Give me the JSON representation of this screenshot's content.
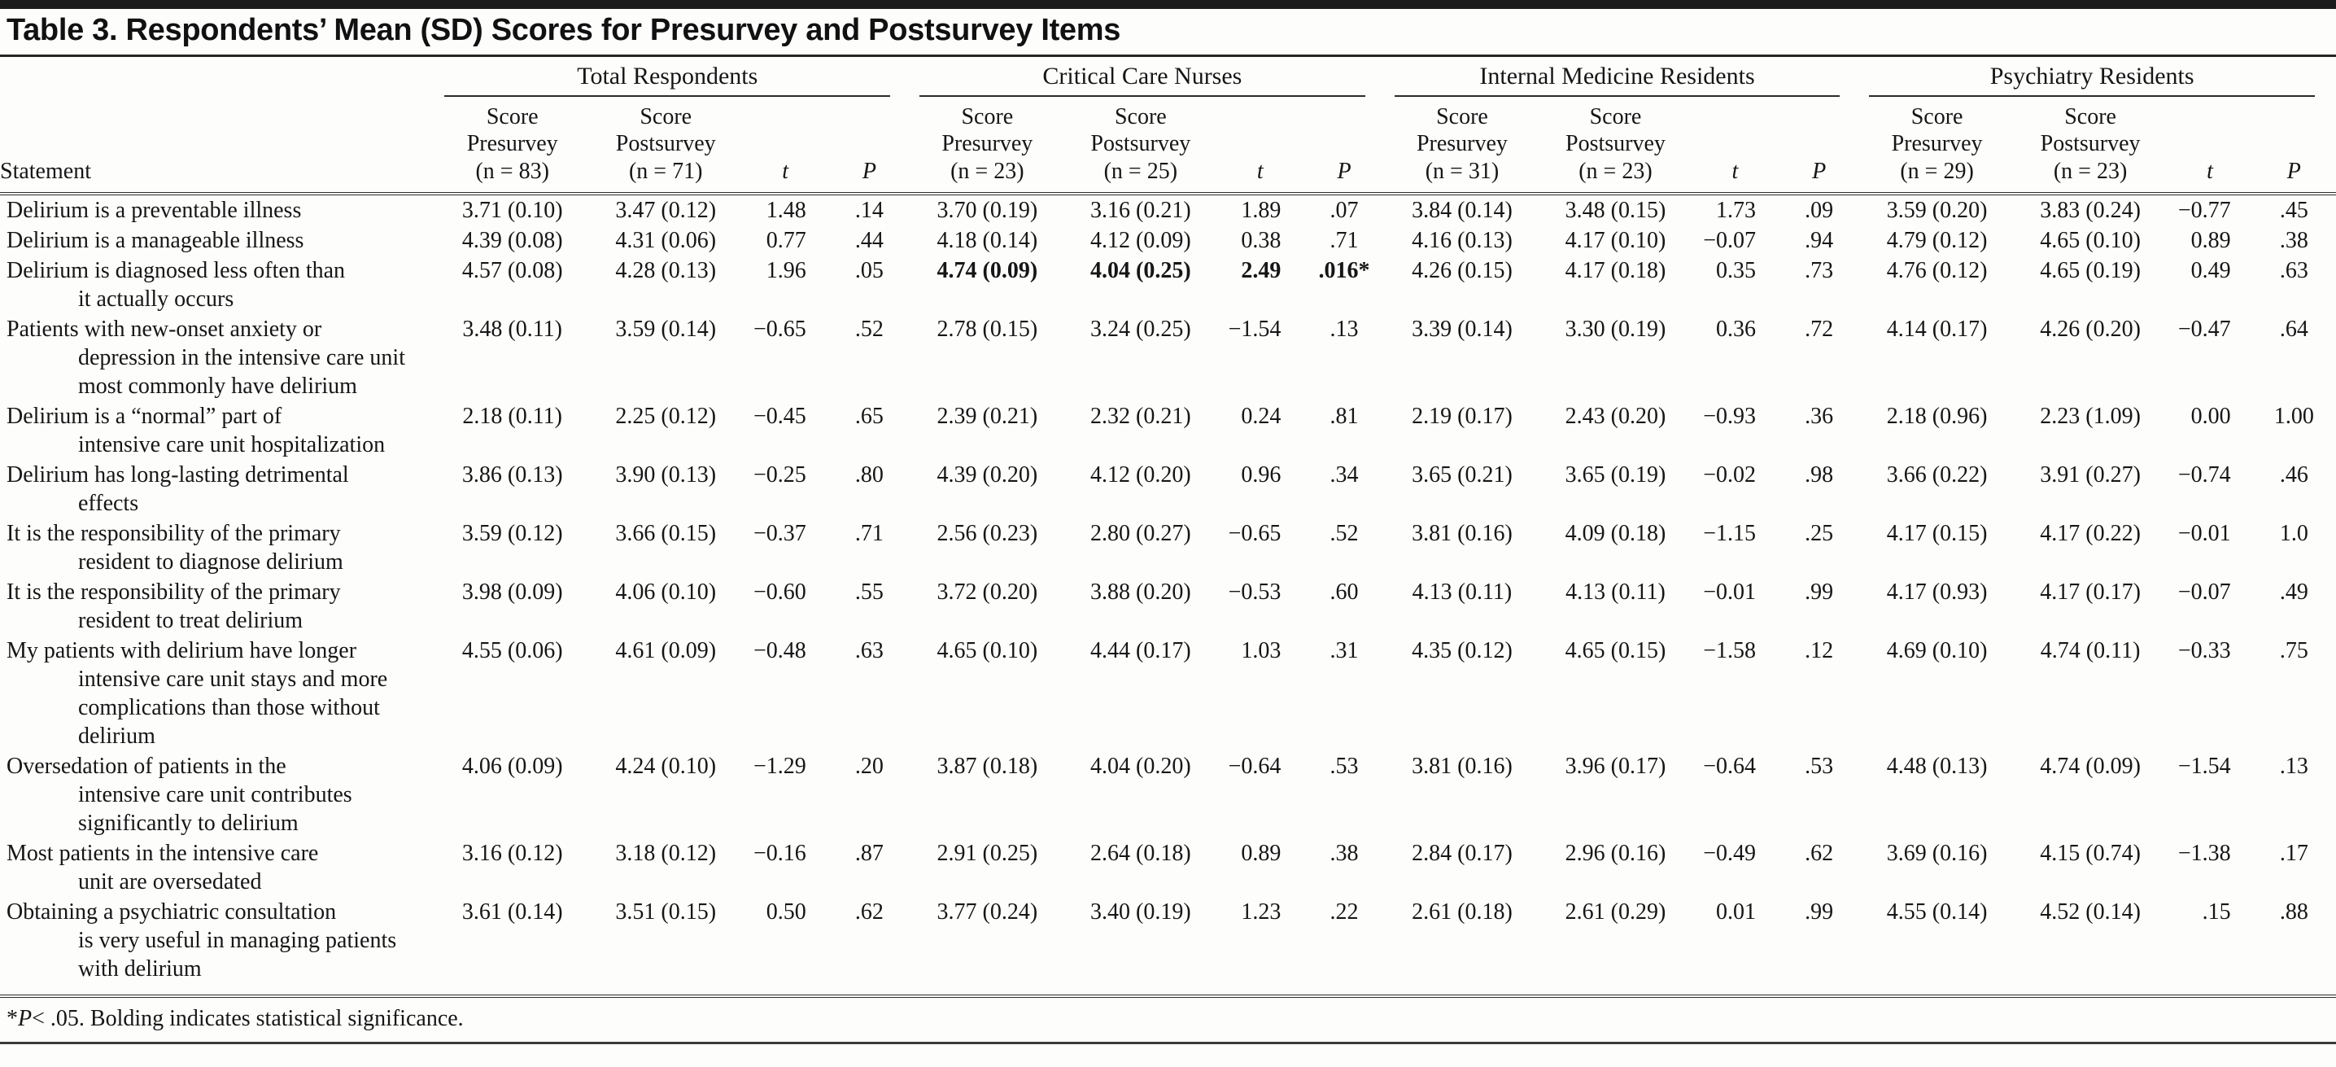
{
  "title": "Table 3. Respondents’ Mean (SD) Scores for Presurvey and Postsurvey Items",
  "table": {
    "statement_header": "Statement",
    "groups": [
      {
        "label": "Total Respondents",
        "pre": "Score\nPresurvey\n(n = 83)",
        "post": "Score\nPostsurvey\n(n = 71)",
        "t": "t",
        "p": "P"
      },
      {
        "label": "Critical Care Nurses",
        "pre": "Score\nPresurvey\n(n = 23)",
        "post": "Score\nPostsurvey\n(n = 25)",
        "t": "t",
        "p": "P"
      },
      {
        "label": "Internal Medicine Residents",
        "pre": "Score\nPresurvey\n(n = 31)",
        "post": "Score\nPostsurvey\n(n = 23)",
        "t": "t",
        "p": "P"
      },
      {
        "label": "Psychiatry Residents",
        "pre": "Score\nPresurvey\n(n = 29)",
        "post": "Score\nPostsurvey\n(n = 23)",
        "t": "t",
        "p": "P"
      }
    ],
    "rows": [
      {
        "statement": "Delirium is a preventable illness",
        "values": [
          "3.71 (0.10)",
          "3.47 (0.12)",
          "1.48",
          ".14",
          "3.70 (0.19)",
          "3.16 (0.21)",
          "1.89",
          ".07",
          "3.84 (0.14)",
          "3.48 (0.15)",
          "1.73",
          ".09",
          "3.59 (0.20)",
          "3.83 (0.24)",
          "−0.77",
          ".45"
        ],
        "bold": []
      },
      {
        "statement": "Delirium is a manageable illness",
        "values": [
          "4.39 (0.08)",
          "4.31 (0.06)",
          "0.77",
          ".44",
          "4.18 (0.14)",
          "4.12 (0.09)",
          "0.38",
          ".71",
          "4.16 (0.13)",
          "4.17 (0.10)",
          "−0.07",
          ".94",
          "4.79 (0.12)",
          "4.65 (0.10)",
          "0.89",
          ".38"
        ],
        "bold": []
      },
      {
        "statement": "Delirium is diagnosed less often than\nit actually occurs",
        "values": [
          "4.57 (0.08)",
          "4.28 (0.13)",
          "1.96",
          ".05",
          "4.74 (0.09)",
          "4.04 (0.25)",
          "2.49",
          ".016*",
          "4.26 (0.15)",
          "4.17 (0.18)",
          "0.35",
          ".73",
          "4.76 (0.12)",
          "4.65 (0.19)",
          "0.49",
          ".63"
        ],
        "bold": [
          4,
          5,
          6,
          7
        ]
      },
      {
        "statement": "Patients with new-onset anxiety or\ndepression in the intensive care unit\nmost commonly have delirium",
        "values": [
          "3.48 (0.11)",
          "3.59 (0.14)",
          "−0.65",
          ".52",
          "2.78 (0.15)",
          "3.24 (0.25)",
          "−1.54",
          ".13",
          "3.39 (0.14)",
          "3.30 (0.19)",
          "0.36",
          ".72",
          "4.14 (0.17)",
          "4.26 (0.20)",
          "−0.47",
          ".64"
        ],
        "bold": []
      },
      {
        "statement": "Delirium is a “normal” part of\nintensive care unit hospitalization",
        "values": [
          "2.18 (0.11)",
          "2.25 (0.12)",
          "−0.45",
          ".65",
          "2.39 (0.21)",
          "2.32 (0.21)",
          "0.24",
          ".81",
          "2.19 (0.17)",
          "2.43 (0.20)",
          "−0.93",
          ".36",
          "2.18 (0.96)",
          "2.23 (1.09)",
          "0.00",
          "1.00"
        ],
        "bold": []
      },
      {
        "statement": "Delirium has long-lasting detrimental\neffects",
        "values": [
          "3.86 (0.13)",
          "3.90 (0.13)",
          "−0.25",
          ".80",
          "4.39 (0.20)",
          "4.12 (0.20)",
          "0.96",
          ".34",
          "3.65 (0.21)",
          "3.65 (0.19)",
          "−0.02",
          ".98",
          "3.66 (0.22)",
          "3.91 (0.27)",
          "−0.74",
          ".46"
        ],
        "bold": []
      },
      {
        "statement": "It is the responsibility of the primary\nresident to diagnose delirium",
        "values": [
          "3.59 (0.12)",
          "3.66 (0.15)",
          "−0.37",
          ".71",
          "2.56 (0.23)",
          "2.80 (0.27)",
          "−0.65",
          ".52",
          "3.81 (0.16)",
          "4.09 (0.18)",
          "−1.15",
          ".25",
          "4.17 (0.15)",
          "4.17 (0.22)",
          "−0.01",
          "1.0"
        ],
        "bold": []
      },
      {
        "statement": "It is the responsibility of the primary\nresident to treat delirium",
        "values": [
          "3.98 (0.09)",
          "4.06 (0.10)",
          "−0.60",
          ".55",
          "3.72 (0.20)",
          "3.88 (0.20)",
          "−0.53",
          ".60",
          "4.13 (0.11)",
          "4.13 (0.11)",
          "−0.01",
          ".99",
          "4.17 (0.93)",
          "4.17 (0.17)",
          "−0.07",
          ".49"
        ],
        "bold": []
      },
      {
        "statement": "My patients with delirium have longer\nintensive care unit stays and more\ncomplications than those without\ndelirium",
        "values": [
          "4.55 (0.06)",
          "4.61 (0.09)",
          "−0.48",
          ".63",
          "4.65 (0.10)",
          "4.44 (0.17)",
          "1.03",
          ".31",
          "4.35 (0.12)",
          "4.65 (0.15)",
          "−1.58",
          ".12",
          "4.69 (0.10)",
          "4.74 (0.11)",
          "−0.33",
          ".75"
        ],
        "bold": []
      },
      {
        "statement": "Oversedation of patients in the\nintensive care unit contributes\nsignificantly to delirium",
        "values": [
          "4.06 (0.09)",
          "4.24 (0.10)",
          "−1.29",
          ".20",
          "3.87 (0.18)",
          "4.04 (0.20)",
          "−0.64",
          ".53",
          "3.81 (0.16)",
          "3.96 (0.17)",
          "−0.64",
          ".53",
          "4.48 (0.13)",
          "4.74 (0.09)",
          "−1.54",
          ".13"
        ],
        "bold": []
      },
      {
        "statement": "Most patients in the intensive care\nunit are oversedated",
        "values": [
          "3.16 (0.12)",
          "3.18 (0.12)",
          "−0.16",
          ".87",
          "2.91 (0.25)",
          "2.64 (0.18)",
          "0.89",
          ".38",
          "2.84 (0.17)",
          "2.96 (0.16)",
          "−0.49",
          ".62",
          "3.69 (0.16)",
          "4.15 (0.74)",
          "−1.38",
          ".17"
        ],
        "bold": []
      },
      {
        "statement": "Obtaining a psychiatric consultation\nis very useful in managing patients\nwith delirium",
        "values": [
          "3.61 (0.14)",
          "3.51 (0.15)",
          "0.50",
          ".62",
          "3.77 (0.24)",
          "3.40 (0.19)",
          "1.23",
          ".22",
          "2.61 (0.18)",
          "2.61 (0.29)",
          "0.01",
          ".99",
          "4.55 (0.14)",
          "4.52 (0.14)",
          ".15",
          ".88"
        ],
        "bold": []
      }
    ]
  },
  "footnote": {
    "star": "*",
    "p_symbol": "P",
    "rest": "< .05. Bolding indicates statistical significance."
  }
}
